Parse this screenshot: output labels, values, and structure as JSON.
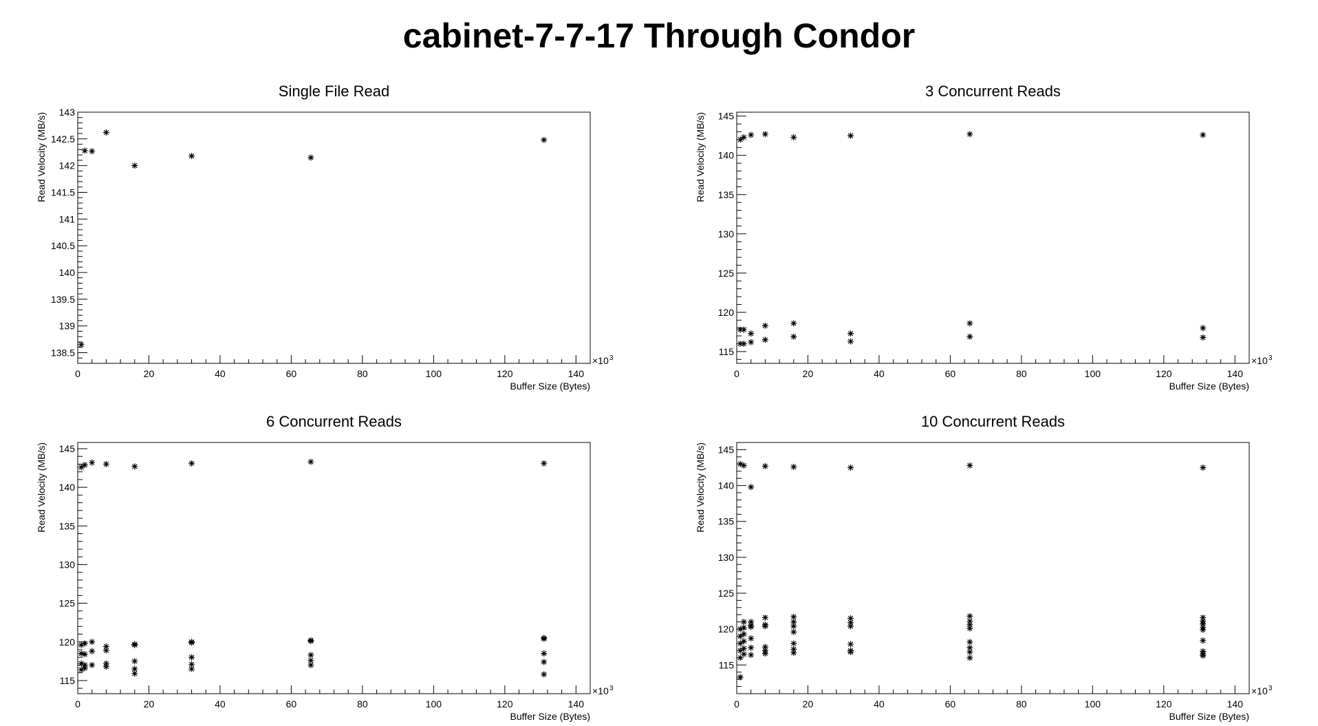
{
  "title": "cabinet-7-7-17 Through Condor",
  "chart_data": [
    {
      "type": "scatter",
      "title": "Single File Read",
      "xlabel": "Buffer Size (Bytes)",
      "ylabel": "Read Velocity (MB/s)",
      "x_multiplier": "×10",
      "x_multiplier_exp": "3",
      "xlim": [
        0,
        144
      ],
      "ylim": [
        138.3,
        143.0
      ],
      "xticks": [
        0,
        20,
        40,
        60,
        80,
        100,
        120,
        140
      ],
      "yticks": [
        138.5,
        139,
        139.5,
        140,
        140.5,
        141,
        141.5,
        142,
        142.5,
        143
      ],
      "ytick_labels": [
        "138.5",
        "139",
        "139.5",
        "140",
        "140.5",
        "141",
        "141.5",
        "142",
        "142.5",
        "143"
      ],
      "series": [
        {
          "points": [
            [
              1,
              138.65
            ],
            [
              2,
              142.28
            ],
            [
              4,
              142.27
            ],
            [
              8,
              142.62
            ],
            [
              16,
              142.0
            ],
            [
              32,
              142.18
            ],
            [
              65.5,
              142.15
            ],
            [
              131,
              142.48
            ]
          ]
        }
      ]
    },
    {
      "type": "scatter",
      "title": "3 Concurrent Reads",
      "xlabel": "Buffer Size (Bytes)",
      "ylabel": "Read Velocity (MB/s)",
      "x_multiplier": "×10",
      "x_multiplier_exp": "3",
      "xlim": [
        0,
        144
      ],
      "ylim": [
        113.5,
        145.5
      ],
      "xticks": [
        0,
        20,
        40,
        60,
        80,
        100,
        120,
        140
      ],
      "yticks": [
        115,
        120,
        125,
        130,
        135,
        140,
        145
      ],
      "ytick_labels": [
        "115",
        "120",
        "125",
        "130",
        "135",
        "140",
        "145"
      ],
      "series": [
        {
          "points": [
            [
              1,
              142.0
            ],
            [
              1,
              117.8
            ],
            [
              1,
              116.0
            ],
            [
              2,
              142.3
            ],
            [
              2,
              117.8
            ],
            [
              2,
              116.0
            ],
            [
              4,
              142.6
            ],
            [
              4,
              117.3
            ],
            [
              4,
              116.2
            ],
            [
              8,
              142.7
            ],
            [
              8,
              118.3
            ],
            [
              8,
              116.5
            ],
            [
              16,
              142.3
            ],
            [
              16,
              118.6
            ],
            [
              16,
              116.9
            ],
            [
              32,
              142.5
            ],
            [
              32,
              117.3
            ],
            [
              32,
              116.3
            ],
            [
              65.5,
              142.7
            ],
            [
              65.5,
              118.6
            ],
            [
              65.5,
              116.9
            ],
            [
              131,
              142.6
            ],
            [
              131,
              118.0
            ],
            [
              131,
              116.8
            ]
          ]
        }
      ]
    },
    {
      "type": "scatter",
      "title": "6 Concurrent Reads",
      "xlabel": "Buffer Size (Bytes)",
      "ylabel": "Read Velocity (MB/s)",
      "x_multiplier": "×10",
      "x_multiplier_exp": "3",
      "xlim": [
        0,
        144
      ],
      "ylim": [
        113.3,
        145.8
      ],
      "xticks": [
        0,
        20,
        40,
        60,
        80,
        100,
        120,
        140
      ],
      "yticks": [
        115,
        120,
        125,
        130,
        135,
        140,
        145
      ],
      "ytick_labels": [
        "115",
        "120",
        "125",
        "130",
        "135",
        "140",
        "145"
      ],
      "series": [
        {
          "points": [
            [
              1,
              142.6
            ],
            [
              1,
              119.6
            ],
            [
              1,
              118.5
            ],
            [
              1,
              117.2
            ],
            [
              1,
              116.4
            ],
            [
              2,
              142.9
            ],
            [
              2,
              119.8
            ],
            [
              2,
              118.4
            ],
            [
              2,
              117.0
            ],
            [
              2,
              116.6
            ],
            [
              4,
              143.2
            ],
            [
              4,
              120.0
            ],
            [
              4,
              118.8
            ],
            [
              4,
              117.0
            ],
            [
              8,
              143.0
            ],
            [
              8,
              119.4
            ],
            [
              8,
              118.9
            ],
            [
              8,
              117.2
            ],
            [
              8,
              116.8
            ],
            [
              16,
              142.7
            ],
            [
              16,
              119.7
            ],
            [
              16,
              119.6
            ],
            [
              16,
              117.5
            ],
            [
              16,
              116.5
            ],
            [
              16,
              115.9
            ],
            [
              32,
              143.1
            ],
            [
              32,
              120.0
            ],
            [
              32,
              119.9
            ],
            [
              32,
              118.0
            ],
            [
              32,
              117.1
            ],
            [
              32,
              116.5
            ],
            [
              65.5,
              143.3
            ],
            [
              65.5,
              120.2
            ],
            [
              65.5,
              120.1
            ],
            [
              65.5,
              118.3
            ],
            [
              65.5,
              117.6
            ],
            [
              65.5,
              117.0
            ],
            [
              131,
              143.1
            ],
            [
              131,
              120.5
            ],
            [
              131,
              120.4
            ],
            [
              131,
              118.5
            ],
            [
              131,
              117.4
            ],
            [
              131,
              115.8
            ]
          ]
        }
      ]
    },
    {
      "type": "scatter",
      "title": "10 Concurrent Reads",
      "xlabel": "Buffer Size (Bytes)",
      "ylabel": "Read Velocity (MB/s)",
      "x_multiplier": "×10",
      "x_multiplier_exp": "3",
      "xlim": [
        0,
        144
      ],
      "ylim": [
        111.0,
        146.0
      ],
      "xticks": [
        0,
        20,
        40,
        60,
        80,
        100,
        120,
        140
      ],
      "yticks": [
        115,
        120,
        125,
        130,
        135,
        140,
        145
      ],
      "ytick_labels": [
        "115",
        "120",
        "125",
        "130",
        "135",
        "140",
        "145"
      ],
      "series": [
        {
          "points": [
            [
              1,
              143.0
            ],
            [
              1,
              120.0
            ],
            [
              1,
              119.0
            ],
            [
              1,
              118.0
            ],
            [
              1,
              117.0
            ],
            [
              1,
              116.0
            ],
            [
              1,
              113.3
            ],
            [
              2,
              142.8
            ],
            [
              2,
              121.0
            ],
            [
              2,
              120.2
            ],
            [
              2,
              119.3
            ],
            [
              2,
              118.3
            ],
            [
              2,
              117.3
            ],
            [
              2,
              116.5
            ],
            [
              4,
              139.8
            ],
            [
              4,
              121.0
            ],
            [
              4,
              120.5
            ],
            [
              4,
              120.3
            ],
            [
              4,
              118.7
            ],
            [
              4,
              117.4
            ],
            [
              4,
              116.4
            ],
            [
              8,
              142.7
            ],
            [
              8,
              121.6
            ],
            [
              8,
              120.6
            ],
            [
              8,
              120.4
            ],
            [
              8,
              117.5
            ],
            [
              8,
              117.0
            ],
            [
              8,
              116.6
            ],
            [
              16,
              142.6
            ],
            [
              16,
              121.7
            ],
            [
              16,
              121.0
            ],
            [
              16,
              120.4
            ],
            [
              16,
              119.6
            ],
            [
              16,
              118.0
            ],
            [
              16,
              117.2
            ],
            [
              16,
              116.7
            ],
            [
              32,
              142.5
            ],
            [
              32,
              121.5
            ],
            [
              32,
              120.9
            ],
            [
              32,
              120.4
            ],
            [
              32,
              117.9
            ],
            [
              32,
              117.0
            ],
            [
              32,
              116.8
            ],
            [
              65.5,
              142.8
            ],
            [
              65.5,
              121.8
            ],
            [
              65.5,
              121.1
            ],
            [
              65.5,
              120.6
            ],
            [
              65.5,
              120.1
            ],
            [
              65.5,
              118.2
            ],
            [
              65.5,
              117.4
            ],
            [
              65.5,
              116.8
            ],
            [
              65.5,
              116.0
            ],
            [
              131,
              142.5
            ],
            [
              131,
              121.6
            ],
            [
              131,
              121.1
            ],
            [
              131,
              120.7
            ],
            [
              131,
              120.2
            ],
            [
              131,
              119.9
            ],
            [
              131,
              118.4
            ],
            [
              131,
              116.9
            ],
            [
              131,
              116.5
            ],
            [
              131,
              116.3
            ]
          ]
        }
      ]
    }
  ]
}
